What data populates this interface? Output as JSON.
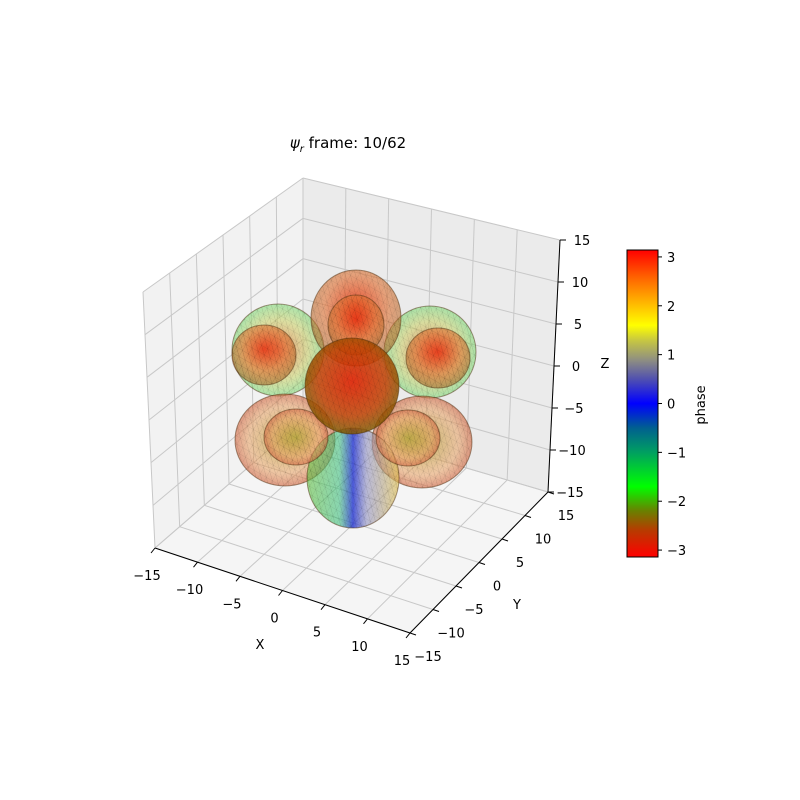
{
  "chart_data": {
    "type": "surface3d",
    "title": {
      "symbol": "ψ",
      "subscript": "r",
      "text": " frame: 10/62"
    },
    "xlabel": "X",
    "ylabel": "Y",
    "zlabel": "Z",
    "xlim": [
      -15,
      15
    ],
    "ylim": [
      -15,
      15
    ],
    "zlim": [
      -15,
      15
    ],
    "xticks": [
      "−15",
      "−10",
      "−5",
      "0",
      "5",
      "10",
      "15"
    ],
    "yticks": [
      "−15",
      "−10",
      "−5",
      "0",
      "5",
      "10",
      "15"
    ],
    "zticks": [
      "−15",
      "−10",
      "−5",
      "0",
      "5",
      "10",
      "15"
    ],
    "grid": true,
    "surface_description_colormap": "phase",
    "colorbar": {
      "label": "phase",
      "range": [
        -3.14159,
        3.14159
      ],
      "ticks": [
        "−3",
        "−2",
        "−1",
        "0",
        "1",
        "2",
        "3"
      ],
      "tick_values": [
        -3,
        -2,
        -1,
        0,
        1,
        2,
        3
      ],
      "colors": [
        {
          "value": -3.14,
          "color": "#ff0000"
        },
        {
          "value": -2.6,
          "color": "#b83a00"
        },
        {
          "value": -2.2,
          "color": "#6a8000"
        },
        {
          "value": -1.7,
          "color": "#00ff00"
        },
        {
          "value": -1.0,
          "color": "#00a060"
        },
        {
          "value": -0.5,
          "color": "#006090"
        },
        {
          "value": 0.0,
          "color": "#0000ff"
        },
        {
          "value": 0.5,
          "color": "#5050b0"
        },
        {
          "value": 0.9,
          "color": "#909080"
        },
        {
          "value": 1.3,
          "color": "#c8c840"
        },
        {
          "value": 1.6,
          "color": "#ffff00"
        },
        {
          "value": 2.1,
          "color": "#ffb000"
        },
        {
          "value": 2.6,
          "color": "#ff6000"
        },
        {
          "value": 3.14,
          "color": "#ff0000"
        }
      ]
    }
  }
}
